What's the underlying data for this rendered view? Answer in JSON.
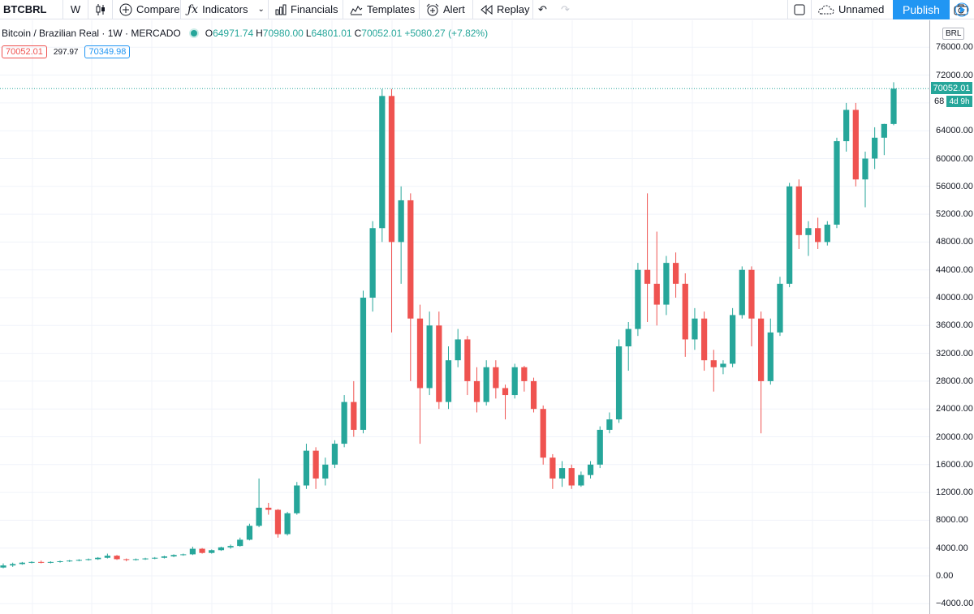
{
  "toolbar": {
    "symbol": "BTCBRL",
    "interval": "W",
    "compare": "Compare",
    "indicators": "Indicators",
    "financials": "Financials",
    "templates": "Templates",
    "alert": "Alert",
    "replay": "Replay",
    "layout_name": "Unnamed",
    "publish": "Publish"
  },
  "legend": {
    "title": "Bitcoin / Brazilian Real · 1W · MERCADO",
    "o_label": "O",
    "o_value": "64971.74",
    "h_label": "H",
    "h_value": "70980.00",
    "l_label": "L",
    "l_value": "64801.01",
    "c_label": "C",
    "c_value": "70052.01",
    "change": "+5080.27 (+7.82%)"
  },
  "bid_ask": {
    "bid": "70052.01",
    "spread": "297.97",
    "ask": "70349.98"
  },
  "currency": "BRL",
  "last_price": "70052.01",
  "countdown": "4d 9h",
  "price_partial": "68",
  "colors": {
    "up": "#26a69a",
    "down": "#ef5350",
    "accent": "#2196f3"
  },
  "chart_data": {
    "type": "candlestick",
    "symbol": "BTCBRL",
    "interval": "1W",
    "currency": "BRL",
    "ylim": [
      -4000,
      76000
    ],
    "y_ticks": [
      "76000.00",
      "72000.00",
      "68000.00",
      "64000.00",
      "60000.00",
      "56000.00",
      "52000.00",
      "48000.00",
      "44000.00",
      "40000.00",
      "36000.00",
      "32000.00",
      "28000.00",
      "24000.00",
      "20000.00",
      "16000.00",
      "12000.00",
      "8000.00",
      "4000.00",
      "0.00",
      "−4000.00"
    ],
    "last_close": 70052.01,
    "candles": [
      [
        1200,
        1800,
        1100,
        1500
      ],
      [
        1500,
        1900,
        1300,
        1700
      ],
      [
        1700,
        2000,
        1600,
        1900
      ],
      [
        1900,
        2100,
        1800,
        2000
      ],
      [
        2000,
        2200,
        1800,
        1900
      ],
      [
        1900,
        2100,
        1800,
        2000
      ],
      [
        2000,
        2200,
        1900,
        2100
      ],
      [
        2100,
        2300,
        2000,
        2200
      ],
      [
        2200,
        2400,
        2100,
        2300
      ],
      [
        2300,
        2500,
        2200,
        2400
      ],
      [
        2400,
        2700,
        2300,
        2600
      ],
      [
        2600,
        3200,
        2500,
        2900
      ],
      [
        2900,
        3000,
        2300,
        2400
      ],
      [
        2400,
        2500,
        2100,
        2300
      ],
      [
        2300,
        2500,
        2200,
        2400
      ],
      [
        2400,
        2600,
        2300,
        2500
      ],
      [
        2500,
        2700,
        2400,
        2600
      ],
      [
        2600,
        2900,
        2500,
        2800
      ],
      [
        2800,
        3100,
        2700,
        3000
      ],
      [
        3000,
        3200,
        2900,
        3100
      ],
      [
        3100,
        4200,
        3000,
        3900
      ],
      [
        3900,
        4000,
        3200,
        3300
      ],
      [
        3300,
        3800,
        3200,
        3700
      ],
      [
        3700,
        4200,
        3600,
        4100
      ],
      [
        4100,
        4500,
        3900,
        4300
      ],
      [
        4300,
        5500,
        4200,
        5200
      ],
      [
        5200,
        7500,
        5100,
        7200
      ],
      [
        7200,
        14000,
        7000,
        9800
      ],
      [
        9800,
        10500,
        8800,
        9500
      ],
      [
        9500,
        9600,
        5500,
        6000
      ],
      [
        6000,
        9200,
        5800,
        9000
      ],
      [
        9000,
        13500,
        8800,
        13000
      ],
      [
        13000,
        19000,
        12500,
        18000
      ],
      [
        18000,
        18500,
        12500,
        14000
      ],
      [
        14000,
        17000,
        13000,
        16000
      ],
      [
        16000,
        19500,
        15500,
        19000
      ],
      [
        19000,
        26000,
        18500,
        25000
      ],
      [
        25000,
        28000,
        20000,
        21000
      ],
      [
        21000,
        41000,
        20500,
        40000
      ],
      [
        40000,
        51000,
        38000,
        50000
      ],
      [
        50000,
        70000,
        48000,
        69000
      ],
      [
        69000,
        70000,
        35000,
        48000
      ],
      [
        48000,
        56000,
        42000,
        54000
      ],
      [
        54000,
        55000,
        28000,
        37000
      ],
      [
        37000,
        39000,
        19000,
        27000
      ],
      [
        27000,
        38000,
        26000,
        36000
      ],
      [
        36000,
        38000,
        24000,
        25000
      ],
      [
        25000,
        33000,
        24000,
        31000
      ],
      [
        31000,
        35500,
        30000,
        34000
      ],
      [
        34000,
        34500,
        26000,
        28000
      ],
      [
        28000,
        30000,
        23500,
        25000
      ],
      [
        25000,
        31000,
        24500,
        30000
      ],
      [
        30000,
        31000,
        25500,
        27000
      ],
      [
        27000,
        27500,
        22500,
        26000
      ],
      [
        26000,
        30500,
        25500,
        30000
      ],
      [
        30000,
        30200,
        26500,
        28000
      ],
      [
        28000,
        28500,
        23500,
        24000
      ],
      [
        24000,
        24500,
        16000,
        17000
      ],
      [
        17000,
        17500,
        12500,
        14000
      ],
      [
        14000,
        16500,
        12800,
        15500
      ],
      [
        15500,
        16000,
        12500,
        13000
      ],
      [
        13000,
        15000,
        12800,
        14500
      ],
      [
        14500,
        16500,
        14000,
        16000
      ],
      [
        16000,
        21500,
        15500,
        21000
      ],
      [
        21000,
        23500,
        20500,
        22500
      ],
      [
        22500,
        34000,
        22000,
        33000
      ],
      [
        33000,
        36500,
        29500,
        35500
      ],
      [
        35500,
        45000,
        34500,
        44000
      ],
      [
        44000,
        55000,
        36500,
        42000
      ],
      [
        42000,
        49500,
        36000,
        39000
      ],
      [
        39000,
        46000,
        37500,
        45000
      ],
      [
        45000,
        46500,
        40000,
        42000
      ],
      [
        42000,
        43500,
        31500,
        34000
      ],
      [
        34000,
        38500,
        32500,
        37000
      ],
      [
        37000,
        38000,
        29500,
        31000
      ],
      [
        31000,
        32500,
        26500,
        30000
      ],
      [
        30000,
        31000,
        29000,
        30500
      ],
      [
        30500,
        38500,
        30000,
        37500
      ],
      [
        37500,
        44500,
        37000,
        44000
      ],
      [
        44000,
        44500,
        33000,
        37000
      ],
      [
        37000,
        38000,
        20500,
        28000
      ],
      [
        28000,
        37000,
        27500,
        35000
      ],
      [
        35000,
        43000,
        34500,
        42000
      ],
      [
        42000,
        56500,
        41500,
        56000
      ],
      [
        56000,
        57000,
        47000,
        49000
      ],
      [
        49000,
        51000,
        46000,
        50000
      ],
      [
        50000,
        51500,
        47000,
        48000
      ],
      [
        48000,
        51000,
        47500,
        50500
      ],
      [
        50500,
        63000,
        50000,
        62500
      ],
      [
        62500,
        68000,
        61000,
        67000
      ],
      [
        67000,
        68000,
        56000,
        57000
      ],
      [
        57000,
        61000,
        53000,
        60000
      ],
      [
        60000,
        64500,
        58500,
        63000
      ],
      [
        63000,
        65000,
        60500,
        64971.74
      ],
      [
        64971.74,
        70980,
        64801.01,
        70052.01
      ]
    ]
  }
}
